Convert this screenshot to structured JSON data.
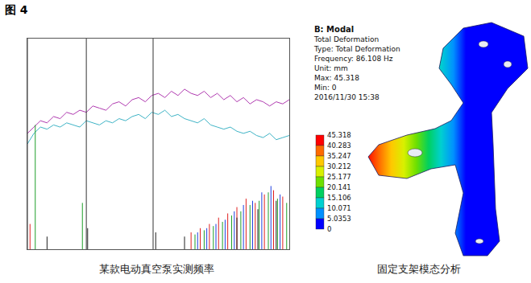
{
  "figure_label": "图 4",
  "chart_data": {
    "type": "line",
    "caption": "某款电动真空泵实测频率",
    "xlim": [
      0,
      2000
    ],
    "ylim": [
      0,
      100
    ],
    "tick_labels": false,
    "grid": false,
    "cursors": [
      0,
      450,
      960
    ],
    "x": [
      0,
      50,
      100,
      150,
      200,
      250,
      300,
      350,
      400,
      450,
      500,
      550,
      600,
      650,
      700,
      750,
      800,
      850,
      900,
      950,
      1000,
      1050,
      1100,
      1150,
      1200,
      1250,
      1300,
      1350,
      1400,
      1450,
      1500,
      1550,
      1600,
      1650,
      1700,
      1750,
      1800,
      1850,
      1900,
      1950,
      2000
    ],
    "series": [
      {
        "type": "line",
        "color": "#b03ab0",
        "values": [
          55,
          58,
          61,
          60,
          63,
          62,
          65,
          64,
          66,
          65,
          68,
          67,
          66,
          69,
          70,
          68,
          71,
          72,
          70,
          73,
          74,
          72,
          75,
          73,
          76,
          74,
          73,
          75,
          72,
          74,
          71,
          73,
          70,
          72,
          69,
          71,
          70,
          68,
          70,
          69,
          71
        ]
      },
      {
        "type": "line",
        "color": "#3fb4c6",
        "values": [
          50,
          55,
          58,
          57,
          59,
          58,
          60,
          59,
          58,
          61,
          60,
          59,
          61,
          60,
          62,
          61,
          63,
          64,
          62,
          65,
          64,
          66,
          63,
          64,
          62,
          61,
          60,
          62,
          59,
          58,
          57,
          58,
          56,
          55,
          56,
          54,
          53,
          55,
          52,
          53,
          54
        ]
      },
      {
        "type": "stem",
        "color": "#e02020",
        "x": [
          20,
          1250,
          1320,
          1390,
          1460,
          1530,
          1600,
          1670,
          1740,
          1810,
          1880,
          1950
        ],
        "values": [
          12,
          8,
          10,
          12,
          15,
          17,
          20,
          24,
          22,
          26,
          28,
          25
        ]
      },
      {
        "type": "stem",
        "color": "#1f9e2a",
        "x": [
          60,
          420,
          1280,
          1350,
          1420,
          1490,
          1560,
          1630,
          1700,
          1770,
          1840,
          1910,
          1980
        ],
        "values": [
          59,
          22,
          7,
          9,
          11,
          13,
          16,
          18,
          21,
          23,
          27,
          24,
          22
        ]
      },
      {
        "type": "stem",
        "color": "#2040e0",
        "x": [
          1300,
          1370,
          1440,
          1510,
          1580,
          1650,
          1720,
          1790,
          1860,
          1930
        ],
        "values": [
          8,
          10,
          12,
          14,
          18,
          21,
          23,
          27,
          30,
          26
        ]
      },
      {
        "type": "stem",
        "color": "#202020",
        "x": [
          150,
          460,
          980,
          1200,
          1600,
          1760,
          1900
        ],
        "values": [
          6,
          10,
          8,
          6,
          15,
          19,
          23
        ]
      }
    ]
  },
  "modal_panel": {
    "header": [
      "B: Modal",
      "Total Deformation",
      "Type: Total Deformation",
      "Frequency: 86.108 Hz",
      "Unit: mm",
      "Max: 45.318",
      "Min: 0",
      "2016/11/30 15:38"
    ],
    "legend_values": [
      45.318,
      40.283,
      35.247,
      30.212,
      25.177,
      20.141,
      15.106,
      10.071,
      5.0353,
      0
    ],
    "band_colors": [
      "#ff0000",
      "#ff6a00",
      "#ffc800",
      "#d8f000",
      "#6ee000",
      "#00d060",
      "#00d0d0",
      "#0090ff",
      "#0000ff"
    ],
    "caption": "固定支架模态分析"
  }
}
